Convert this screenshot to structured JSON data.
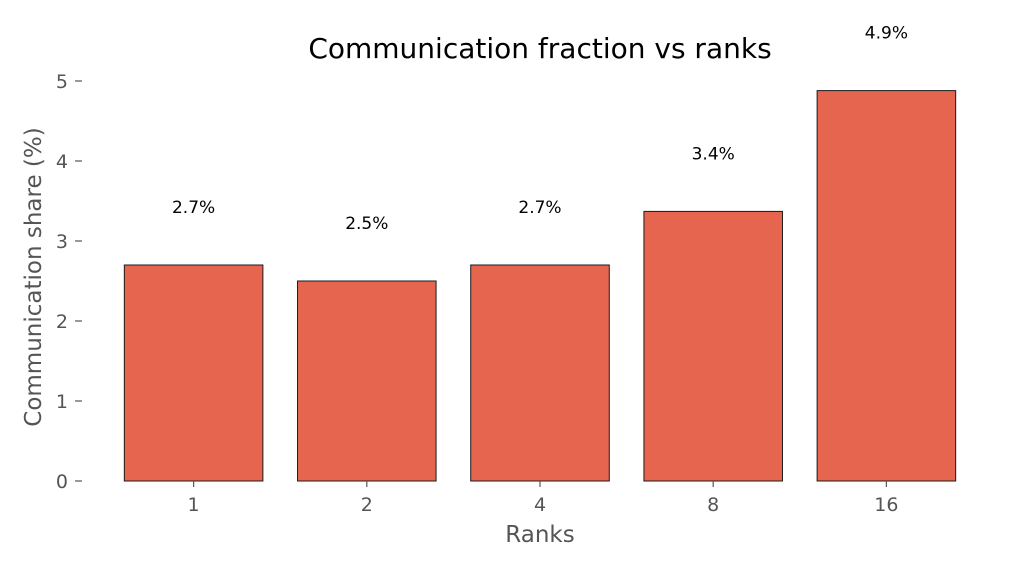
{
  "chart_data": {
    "type": "bar",
    "title": "Communication fraction vs ranks",
    "xlabel": "Ranks",
    "ylabel": "Communication share (%)",
    "categories": [
      "1",
      "2",
      "4",
      "8",
      "16"
    ],
    "values": [
      2.7,
      2.5,
      2.7,
      3.37,
      4.88
    ],
    "data_labels": [
      "2.7%",
      "2.5%",
      "2.7%",
      "3.4%",
      "4.9%"
    ],
    "yticks": [
      0,
      1,
      2,
      3,
      4,
      5
    ],
    "ylim": [
      0,
      5.0
    ],
    "grid": false,
    "legend": "none",
    "bar_color": "#e5654f",
    "bar_edge_color": "#1a1a1a"
  }
}
